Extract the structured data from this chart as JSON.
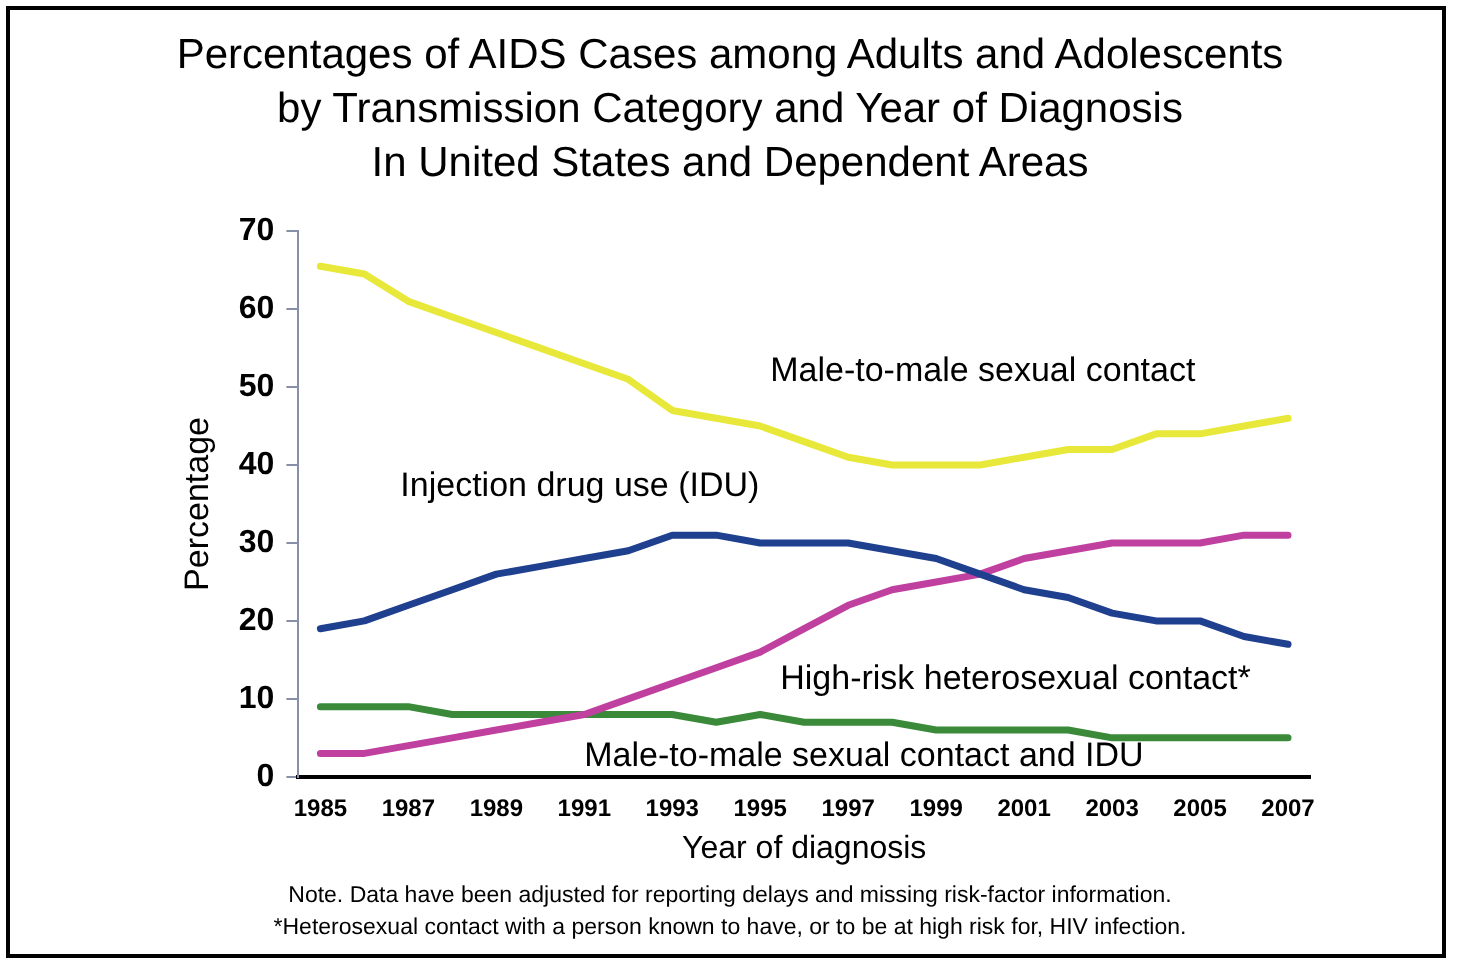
{
  "chart_data": {
    "type": "line",
    "title": "Percentages of AIDS Cases among Adults and Adolescents\nby Transmission Category and Year of Diagnosis\nIn United States and Dependent Areas",
    "xlabel": "Year of diagnosis",
    "ylabel": "Percentage",
    "categories": [
      "1985",
      null,
      "1987",
      null,
      "1989",
      null,
      "1991",
      null,
      "1993",
      null,
      "1995",
      null,
      "1997",
      null,
      "1999",
      null,
      "2001",
      null,
      "2003",
      null,
      "2005",
      null,
      "2007"
    ],
    "series": [
      {
        "name": "Male-to-male sexual contact",
        "color": "#e8e83a",
        "values": [
          65.5,
          64.5,
          61,
          59,
          57,
          55,
          53,
          51,
          47,
          46,
          45,
          43,
          41,
          40,
          40,
          40,
          41,
          42,
          42,
          44,
          44,
          45,
          46
        ]
      },
      {
        "name": "Injection drug use (IDU)",
        "color": "#1f3f8f",
        "values": [
          19,
          20,
          22,
          24,
          26,
          27,
          28,
          29,
          31,
          31,
          30,
          30,
          30,
          29,
          28,
          26,
          24,
          23,
          21,
          20,
          20,
          18,
          17
        ]
      },
      {
        "name": "High-risk heterosexual contact*",
        "color": "#c040a0",
        "values": [
          3,
          3,
          4,
          5,
          6,
          7,
          8,
          10,
          12,
          14,
          16,
          19,
          22,
          24,
          25,
          26,
          28,
          29,
          30,
          30,
          30,
          31,
          31
        ]
      },
      {
        "name": "Male-to-male sexual contact and IDU",
        "color": "#3a8a3a",
        "values": [
          9,
          9,
          9,
          8,
          8,
          8,
          8,
          8,
          8,
          7,
          8,
          7,
          7,
          7,
          6,
          6,
          6,
          6,
          5,
          5,
          5,
          5,
          5
        ]
      }
    ],
    "ylim": [
      0,
      70
    ],
    "yticks": [
      0,
      10,
      20,
      30,
      40,
      50,
      60,
      70
    ],
    "grid": false,
    "legend": false,
    "marker": "none",
    "line_style": "solid",
    "annotations": [
      "Note. Data have been adjusted for reporting delays and missing risk-factor information.",
      "*Heterosexual contact with a person known to have, or to be at high risk for, HIV infection."
    ]
  }
}
